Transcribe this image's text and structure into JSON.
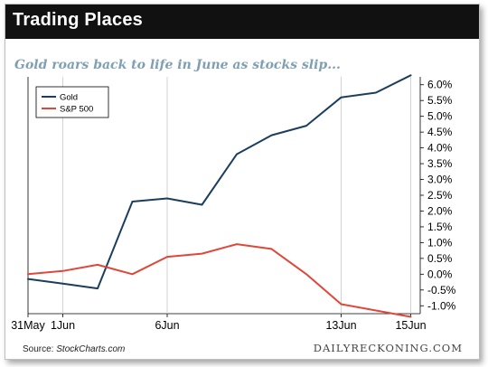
{
  "header": {
    "title": "Trading Places"
  },
  "subtitle": "Gold roars back to life in June as stocks slip...",
  "footer": {
    "source_label": "Source: ",
    "source_name": "StockCharts.com",
    "brand": "DAILYRECKONING.COM"
  },
  "colors": {
    "gold": "#1b3e5e",
    "sp500": "#e0463a",
    "axis": "#000000"
  },
  "chart_data": {
    "type": "line",
    "x": [
      "31May",
      "1Jun",
      "4Jun",
      "5Jun",
      "6Jun",
      "7Jun",
      "8Jun",
      "11Jun",
      "12Jun",
      "13Jun",
      "14Jun",
      "15Jun"
    ],
    "x_tick_labels": [
      {
        "index": 0,
        "label": "31May"
      },
      {
        "index": 1,
        "label": "1Jun"
      },
      {
        "index": 4,
        "label": "6Jun"
      },
      {
        "index": 9,
        "label": "13Jun"
      },
      {
        "index": 11,
        "label": "15Jun"
      }
    ],
    "series": [
      {
        "name": "Gold",
        "color": "#1b3e5e",
        "values": [
          -0.15,
          -0.3,
          -0.45,
          2.3,
          2.4,
          2.2,
          3.8,
          4.4,
          4.7,
          5.6,
          5.75,
          6.3
        ]
      },
      {
        "name": "S&P 500",
        "color": "#e0463a",
        "values": [
          0.0,
          0.1,
          0.3,
          0.0,
          0.55,
          0.65,
          0.95,
          0.8,
          0.0,
          -0.95,
          -1.15,
          -1.35
        ]
      }
    ],
    "ylim": [
      -1.25,
      6.25
    ],
    "y_ticks": [
      -1.0,
      -0.5,
      0.0,
      0.5,
      1.0,
      1.5,
      2.0,
      2.5,
      3.0,
      3.5,
      4.0,
      4.5,
      5.0,
      5.5,
      6.0
    ],
    "y_tick_labels": [
      "-1.0%",
      "-0.5%",
      "0.0%",
      "0.5%",
      "1.0%",
      "1.5%",
      "2.0%",
      "2.5%",
      "3.0%",
      "3.5%",
      "4.0%",
      "4.5%",
      "5.0%",
      "5.5%",
      "6.0%"
    ],
    "y_axis_side": "right",
    "grid": "vertical at labeled dates",
    "legend": {
      "placement": "top-left",
      "entries": [
        "Gold",
        "S&P 500"
      ]
    },
    "xlabel": "",
    "ylabel": ""
  }
}
